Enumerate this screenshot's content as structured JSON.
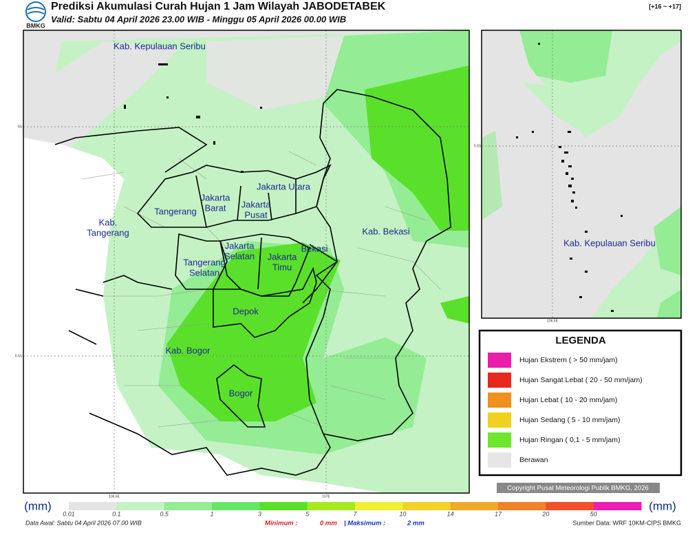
{
  "header": {
    "logo": "BMKG",
    "title": "Prediksi Akumulasi Curah Hujan 1 Jam Wilayah JABODETABEK",
    "valid": "Valid: Sabtu 04 April 2026 23.00 WIB - Minggu 05 April 2026 00.00 WIB",
    "range": "[+16 ~ +17]"
  },
  "map": {
    "labels": [
      {
        "lines": [
          "Kab. Kepulauan Seribu"
        ]
      },
      {
        "lines": [
          "Jakarta Utara"
        ]
      },
      {
        "lines": [
          "Jakarta",
          "Barat"
        ]
      },
      {
        "lines": [
          "Jakarta",
          "Pusat"
        ]
      },
      {
        "lines": [
          "Tangerang"
        ]
      },
      {
        "lines": [
          "Kab.",
          "Tangerang"
        ]
      },
      {
        "lines": [
          "Kab. Bekasi"
        ]
      },
      {
        "lines": [
          "Jakarta",
          "Selatan"
        ]
      },
      {
        "lines": [
          "Bekasi"
        ]
      },
      {
        "lines": [
          "Jakarta",
          "Timu"
        ]
      },
      {
        "lines": [
          "Tangerang",
          "Selatan"
        ]
      },
      {
        "lines": [
          "Depok"
        ]
      },
      {
        "lines": [
          "Kab. Bogor"
        ]
      },
      {
        "lines": [
          "Bogor"
        ]
      }
    ],
    "lat_labels": [
      "6S",
      "6.5S"
    ],
    "lon_labels": [
      "106.5E",
      "107E"
    ]
  },
  "inset": {
    "label": "Kab. Kepulauan Seribu",
    "lat_label": "5.5S",
    "lon_label": "106.5E"
  },
  "legend": {
    "title": "LEGENDA",
    "items": [
      {
        "label": "Hujan Ekstrem ( > 50 mm/jam)",
        "color": "#e91eaa"
      },
      {
        "label": "Hujan Sangat Lebat ( 20 - 50 mm/jam)",
        "color": "#e8281e"
      },
      {
        "label": "Hujan Lebat ( 10 - 20 mm/jam)",
        "color": "#f0901e"
      },
      {
        "label": "Hujan Sedang ( 5 - 10 mm/jam)",
        "color": "#f0d21e"
      },
      {
        "label": "Hujan Ringan ( 0,1 - 5 mm/jam)",
        "color": "#6ee62d"
      },
      {
        "label": "Berawan",
        "color": "#e6e6e6"
      }
    ]
  },
  "copyright": "Copyright Pusat Meteorologi Publik BMKG, 2026",
  "colorbar": {
    "unit_left": "(mm)",
    "unit_right": "(mm)",
    "ticks": [
      "0.01",
      "0.1",
      "0.5",
      "1",
      "3",
      "5",
      "7",
      "10",
      "14",
      "17",
      "20",
      "50"
    ],
    "colors": [
      "#e4e4e4",
      "#c4f2c4",
      "#94ec94",
      "#66e666",
      "#5ae02a",
      "#a6ea1e",
      "#f0f032",
      "#f0d228",
      "#f0aa28",
      "#f08228",
      "#f0502a",
      "#ec1eb4"
    ]
  },
  "footer": {
    "data_awal": "Data Awal: Sabtu 04 April 2026 07.00 WIB",
    "minimum_label": "Minimum :",
    "minimum": "0 mm",
    "maximum_label": "| Maksimum :",
    "maximum": "2 mm",
    "source": "Sumber Data: WRF 10KM-CIPS BMKG"
  }
}
